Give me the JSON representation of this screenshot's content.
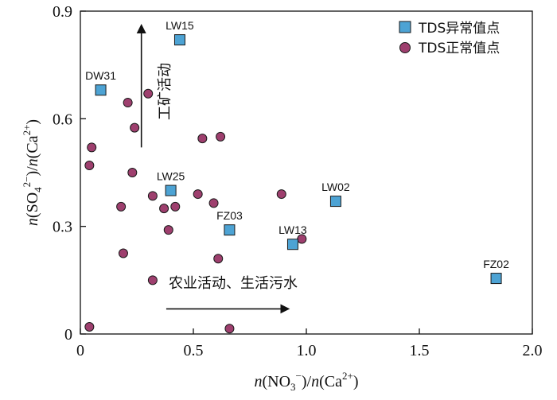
{
  "chart_data": {
    "type": "scatter",
    "x_label": "n(NO₃⁻)/n(Ca²⁺)",
    "y_label": "n(SO₄²⁻)/n(Ca²⁺)",
    "xlim": [
      0,
      2.0
    ],
    "ylim": [
      0,
      0.9
    ],
    "x_ticks": [
      "0",
      "0.5",
      "1.0",
      "1.5",
      "2.0"
    ],
    "y_ticks": [
      "0",
      "0.3",
      "0.6",
      "0.9"
    ],
    "x_tick_values": [
      0,
      0.5,
      1.0,
      1.5,
      2.0
    ],
    "y_tick_values": [
      0,
      0.3,
      0.6,
      0.9
    ],
    "legend_position": "top-right",
    "series": [
      {
        "name": "TDS异常值点",
        "marker": "square",
        "color": "#4da3d4",
        "points": [
          {
            "x": 0.44,
            "y": 0.82,
            "label": "LW15"
          },
          {
            "x": 0.09,
            "y": 0.68,
            "label": "DW31"
          },
          {
            "x": 0.4,
            "y": 0.4,
            "label": "LW25"
          },
          {
            "x": 1.13,
            "y": 0.37,
            "label": "LW02"
          },
          {
            "x": 0.66,
            "y": 0.29,
            "label": "FZ03"
          },
          {
            "x": 0.94,
            "y": 0.25,
            "label": "LW13"
          },
          {
            "x": 1.84,
            "y": 0.155,
            "label": "FZ02"
          }
        ]
      },
      {
        "name": "TDS正常值点",
        "marker": "circle",
        "color": "#9e3f6e",
        "points": [
          {
            "x": 0.05,
            "y": 0.52
          },
          {
            "x": 0.04,
            "y": 0.47
          },
          {
            "x": 0.21,
            "y": 0.645
          },
          {
            "x": 0.24,
            "y": 0.575
          },
          {
            "x": 0.3,
            "y": 0.67
          },
          {
            "x": 0.23,
            "y": 0.45
          },
          {
            "x": 0.18,
            "y": 0.355
          },
          {
            "x": 0.32,
            "y": 0.385
          },
          {
            "x": 0.37,
            "y": 0.35
          },
          {
            "x": 0.42,
            "y": 0.355
          },
          {
            "x": 0.39,
            "y": 0.29
          },
          {
            "x": 0.54,
            "y": 0.545
          },
          {
            "x": 0.62,
            "y": 0.55
          },
          {
            "x": 0.52,
            "y": 0.39
          },
          {
            "x": 0.59,
            "y": 0.365
          },
          {
            "x": 0.19,
            "y": 0.225
          },
          {
            "x": 0.32,
            "y": 0.15
          },
          {
            "x": 0.61,
            "y": 0.21
          },
          {
            "x": 0.89,
            "y": 0.39
          },
          {
            "x": 0.98,
            "y": 0.265
          },
          {
            "x": 0.04,
            "y": 0.02
          },
          {
            "x": 0.66,
            "y": 0.015
          }
        ]
      }
    ],
    "annotations": {
      "mining_text": "工矿活动",
      "mining_arrow": {
        "from": [
          0.27,
          0.52
        ],
        "to": [
          0.27,
          0.86
        ]
      },
      "agri_text": "农业活动、生活污水",
      "agri_arrow": {
        "from": [
          0.38,
          0.07
        ],
        "to": [
          0.92,
          0.07
        ]
      }
    }
  }
}
